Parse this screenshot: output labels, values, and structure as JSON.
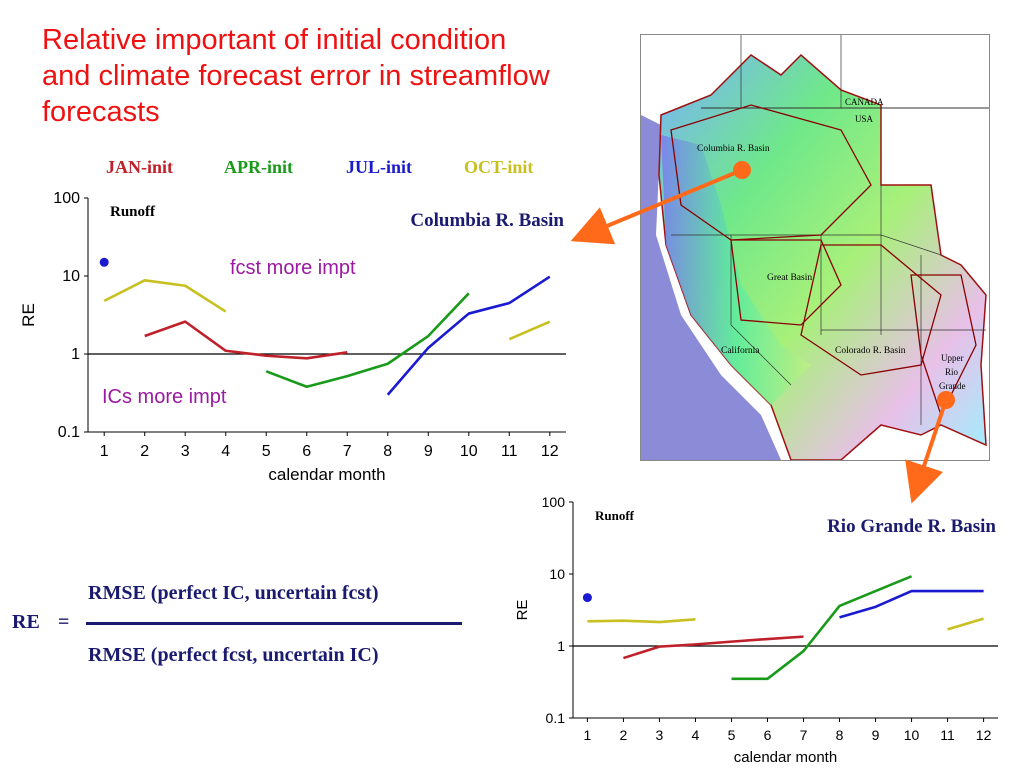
{
  "title": "Relative important of initial condition and climate forecast error in streamflow forecasts",
  "legend": [
    {
      "label": "JAN-init",
      "color": "#c0202a"
    },
    {
      "label": "APR-init",
      "color": "#1a9a1a"
    },
    {
      "label": "JUL-init",
      "color": "#1a1ad0"
    },
    {
      "label": "OCT-init",
      "color": "#c8c020"
    }
  ],
  "formula": {
    "lhs": "RE",
    "equals": "=",
    "numerator": "RMSE (perfect IC, uncertain fcst)",
    "denominator": "RMSE (perfect fcst, uncertain IC)"
  },
  "map": {
    "labels": {
      "canada": "CANADA",
      "usa": "USA",
      "columbia": "Columbia R. Basin",
      "great_basin": "Great Basin",
      "california": "California",
      "colorado": "Colorado R. Basin",
      "upper_rio_grande_1": "Upper",
      "upper_rio_grande_2": "Rio",
      "upper_rio_grande_3": "Grande"
    }
  },
  "chart_data": [
    {
      "type": "line",
      "title": "Columbia R. Basin",
      "inner_label": "Runoff",
      "xlabel": "calendar month",
      "ylabel": "RE",
      "yscale": "log",
      "ylim": [
        0.1,
        100
      ],
      "xlim": [
        0.6,
        12.4
      ],
      "xticks": [
        "1",
        "2",
        "3",
        "4",
        "5",
        "6",
        "7",
        "8",
        "9",
        "10",
        "11",
        "12"
      ],
      "yticks": [
        "0.1",
        "1",
        "10",
        "100"
      ],
      "reference_line": 1,
      "annotations": [
        "fcst more impt",
        "ICs more impt"
      ],
      "marker": {
        "x": 1,
        "y": 15,
        "color": "#1a1ad0"
      },
      "series": [
        {
          "name": "JAN-init",
          "color": "#c0202a",
          "points": [
            [
              2,
              1.7
            ],
            [
              3,
              2.6
            ],
            [
              4,
              1.1
            ],
            [
              5,
              0.95
            ],
            [
              6,
              0.88
            ],
            [
              7,
              1.05
            ]
          ]
        },
        {
          "name": "APR-init",
          "color": "#1a9a1a",
          "points": [
            [
              5,
              0.6
            ],
            [
              6,
              0.38
            ],
            [
              7,
              0.52
            ],
            [
              8,
              0.75
            ],
            [
              9,
              1.7
            ],
            [
              10,
              6
            ]
          ]
        },
        {
          "name": "JUL-init",
          "color": "#1a1ad0",
          "points": [
            [
              8,
              0.3
            ],
            [
              9,
              1.2
            ],
            [
              10,
              3.3
            ],
            [
              11,
              4.5
            ],
            [
              12,
              9.8
            ]
          ]
        },
        {
          "name": "OCT-init",
          "color": "#c8c020",
          "points": [
            [
              1,
              4.8
            ],
            [
              2,
              8.8
            ],
            [
              3,
              7.5
            ],
            [
              4,
              3.5
            ]
          ]
        },
        {
          "name": "OCT-init",
          "color": "#c8c020",
          "points": [
            [
              11,
              1.55
            ],
            [
              12,
              2.6
            ]
          ]
        }
      ]
    },
    {
      "type": "line",
      "title": "Rio Grande R. Basin",
      "inner_label": "Runoff",
      "xlabel": "calendar month",
      "ylabel": "RE",
      "yscale": "log",
      "ylim": [
        0.1,
        100
      ],
      "xlim": [
        0.6,
        12.4
      ],
      "xticks": [
        "1",
        "2",
        "3",
        "4",
        "5",
        "6",
        "7",
        "8",
        "9",
        "10",
        "11",
        "12"
      ],
      "yticks": [
        "0.1",
        "1",
        "10",
        "100"
      ],
      "reference_line": 1,
      "marker": {
        "x": 1,
        "y": 4.7,
        "color": "#1a1ad0"
      },
      "series": [
        {
          "name": "JAN-init",
          "color": "#c0202a",
          "points": [
            [
              2,
              0.68
            ],
            [
              3,
              0.98
            ],
            [
              4,
              1.05
            ],
            [
              5,
              1.15
            ],
            [
              6,
              1.25
            ],
            [
              7,
              1.35
            ]
          ]
        },
        {
          "name": "APR-init",
          "color": "#1a9a1a",
          "points": [
            [
              5,
              0.35
            ],
            [
              6,
              0.35
            ],
            [
              7,
              0.85
            ],
            [
              8,
              3.6
            ],
            [
              9,
              5.8
            ],
            [
              10,
              9.3
            ]
          ]
        },
        {
          "name": "JUL-init",
          "color": "#1a1ad0",
          "points": [
            [
              8,
              2.5
            ],
            [
              9,
              3.5
            ],
            [
              10,
              5.8
            ],
            [
              11,
              5.8
            ],
            [
              12,
              5.8
            ]
          ]
        },
        {
          "name": "OCT-init",
          "color": "#c8c020",
          "points": [
            [
              1,
              2.2
            ],
            [
              2,
              2.25
            ],
            [
              3,
              2.15
            ],
            [
              4,
              2.35
            ]
          ]
        },
        {
          "name": "OCT-init",
          "color": "#c8c020",
          "points": [
            [
              11,
              1.7
            ],
            [
              12,
              2.4
            ]
          ]
        }
      ]
    }
  ]
}
